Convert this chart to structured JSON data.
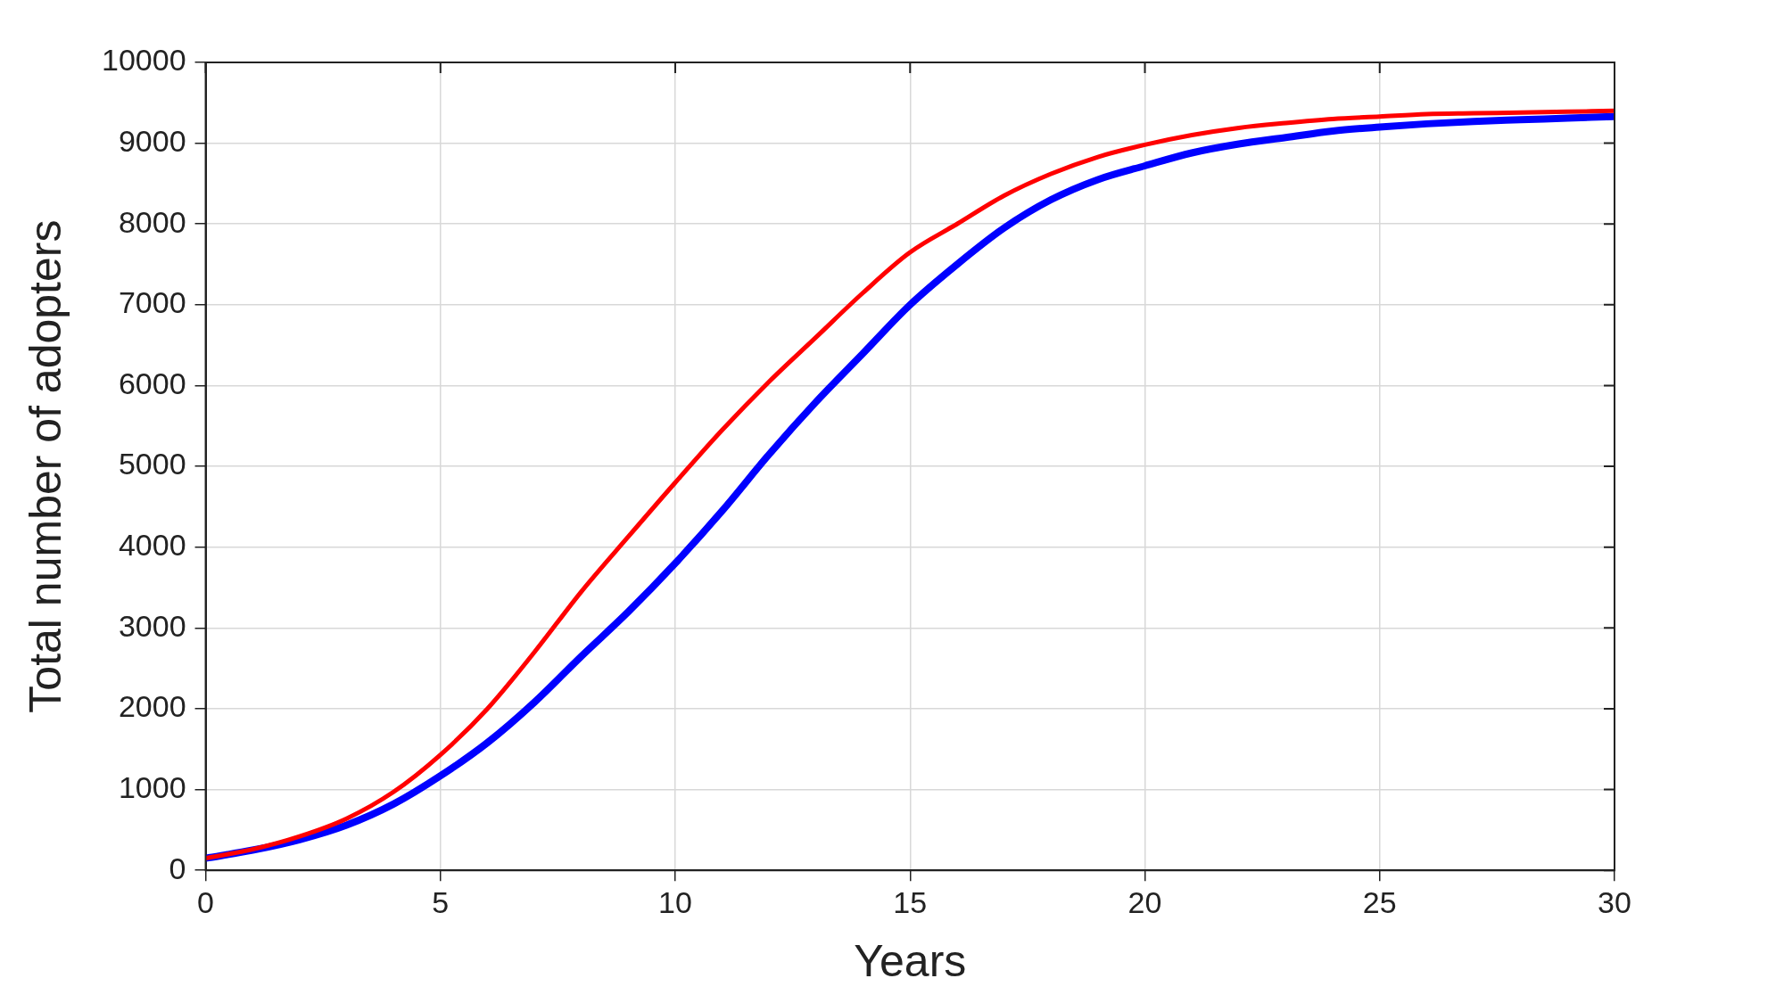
{
  "chart_data": {
    "type": "line",
    "xlabel": "Years",
    "ylabel": "Total number of adopters",
    "x": [
      0,
      1,
      2,
      3,
      4,
      5,
      6,
      7,
      8,
      9,
      10,
      11,
      12,
      13,
      14,
      15,
      16,
      17,
      18,
      19,
      20,
      21,
      22,
      23,
      24,
      25,
      26,
      27,
      28,
      29,
      30
    ],
    "series": [
      {
        "color": "#ff0000",
        "values": [
          150,
          260,
          420,
          640,
          970,
          1430,
          2000,
          2700,
          3450,
          4130,
          4800,
          5450,
          6050,
          6600,
          7150,
          7650,
          8000,
          8350,
          8620,
          8830,
          8980,
          9100,
          9190,
          9250,
          9300,
          9330,
          9360,
          9370,
          9380,
          9390,
          9400
        ]
      },
      {
        "color": "#0000ff",
        "values": [
          150,
          250,
          380,
          560,
          820,
          1170,
          1580,
          2080,
          2650,
          3200,
          3800,
          4450,
          5150,
          5800,
          6400,
          7000,
          7500,
          7950,
          8300,
          8550,
          8720,
          8880,
          8990,
          9070,
          9150,
          9200,
          9240,
          9270,
          9290,
          9310,
          9330
        ]
      }
    ],
    "xlim": [
      0,
      30
    ],
    "xticks": [
      0,
      5,
      10,
      15,
      20,
      25,
      30
    ],
    "ylim": [
      0,
      10000
    ],
    "yticks": [
      0,
      1000,
      2000,
      3000,
      4000,
      5000,
      6000,
      7000,
      8000,
      9000,
      10000
    ],
    "grid": true,
    "legend": false,
    "marker": "none",
    "line_style": "solid"
  }
}
